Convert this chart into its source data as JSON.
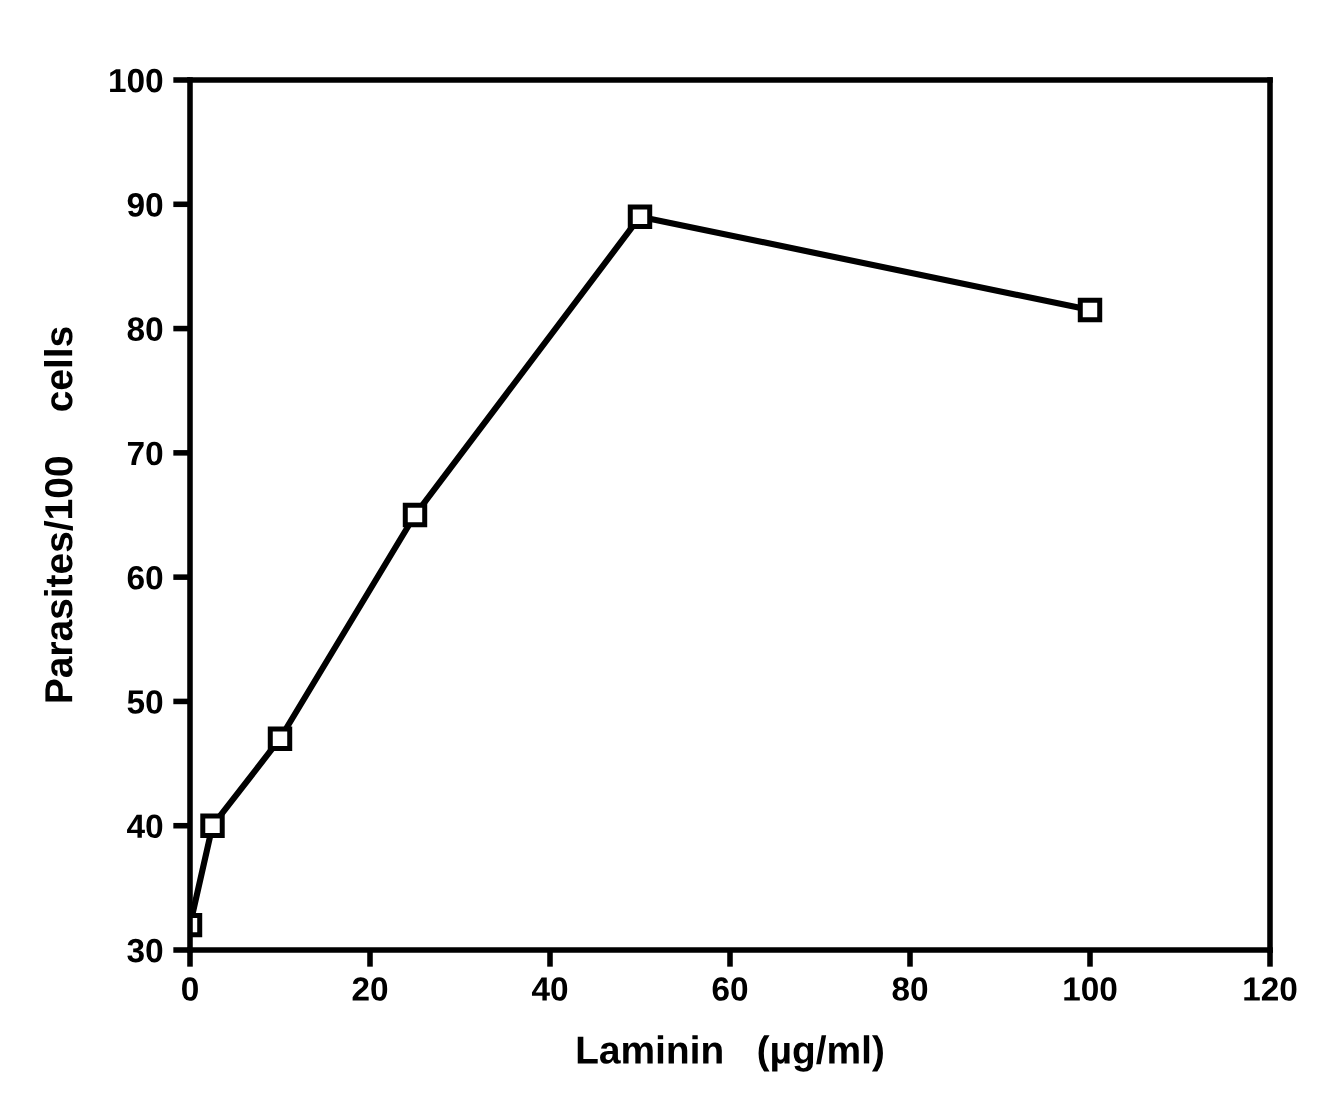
{
  "chart_data": {
    "type": "line",
    "xlabel": "Laminin   (µg/ml)",
    "ylabel": "Parasites/100    cells",
    "x": [
      0,
      2.5,
      10,
      25,
      50,
      100
    ],
    "series": [
      {
        "color": "#000000",
        "values": [
          32,
          40,
          47,
          65,
          89,
          81.5
        ]
      }
    ],
    "xlim": [
      0,
      120
    ],
    "xticks": [
      0,
      20,
      40,
      60,
      80,
      100,
      120
    ],
    "ylim": [
      30,
      100
    ],
    "yticks": [
      30,
      40,
      50,
      60,
      70,
      80,
      90,
      100
    ],
    "marker": "square",
    "line_style": "solid",
    "grid": false,
    "legend": false
  }
}
